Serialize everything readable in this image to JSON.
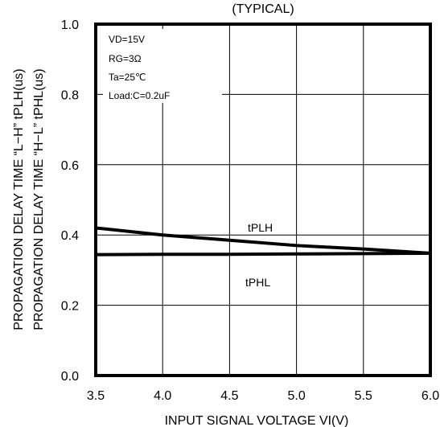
{
  "chart_data": {
    "type": "line",
    "title": "(TYPICAL)",
    "xlabel": "INPUT SIGNAL VOLTAGE  VI(V)",
    "ylabel_lines": [
      "PROPAGATION  DELAY  TIME  “L−H”  tPLH(us)",
      "PROPAGATION  DELAY  TIME  “H−L”  tPHL(us)"
    ],
    "xlim": [
      3.5,
      6.0
    ],
    "ylim": [
      0.0,
      1.0
    ],
    "x_ticks": [
      "3.5",
      "4.0",
      "4.5",
      "5.0",
      "5.5",
      "6.0"
    ],
    "y_ticks": [
      "0.0",
      "0.2",
      "0.4",
      "0.6",
      "0.8",
      "1.0"
    ],
    "grid": true,
    "conditions": [
      "VD=15V",
      "RG=3Ω",
      "Ta=25℃",
      "Load:C=0.2uF"
    ],
    "series": [
      {
        "name": "tPLH",
        "x": [
          3.5,
          4.0,
          4.5,
          5.0,
          5.5,
          6.0
        ],
        "y": [
          0.42,
          0.4,
          0.385,
          0.37,
          0.36,
          0.348
        ]
      },
      {
        "name": "tPHL",
        "x": [
          3.5,
          4.0,
          4.5,
          5.0,
          5.5,
          6.0
        ],
        "y": [
          0.344,
          0.345,
          0.345,
          0.346,
          0.347,
          0.348
        ]
      }
    ]
  }
}
